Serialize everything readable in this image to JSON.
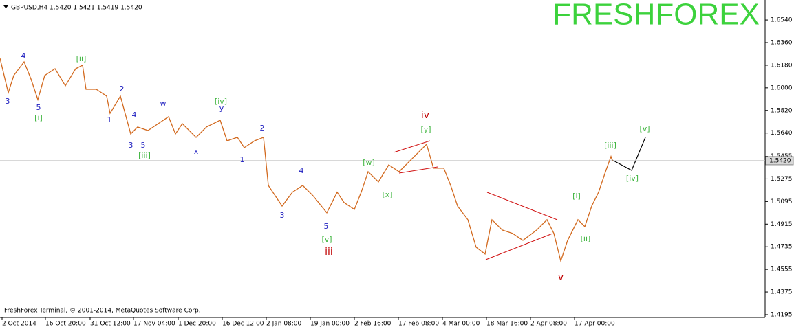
{
  "chart_data": {
    "type": "line",
    "header": "GBPUSD,H4  1.5420 1.5421 1.5419 1.5420",
    "title": "FRESHFOREX",
    "footer": "FreshForex Terminal, © 2001-2014, MetaQuotes Software Corp.",
    "x": [
      0,
      12,
      20,
      35,
      45,
      55,
      65,
      80,
      95,
      110,
      120,
      125,
      140,
      155,
      160,
      175,
      190,
      200,
      215,
      230,
      245,
      255,
      265,
      285,
      300,
      320,
      330,
      345,
      355,
      370,
      383,
      390,
      410,
      425,
      440,
      455,
      475,
      490,
      500,
      515,
      525,
      535,
      550,
      565,
      580,
      600,
      620,
      630,
      645,
      655,
      665,
      680,
      692,
      705,
      715,
      730,
      745,
      760,
      780,
      795,
      805,
      815,
      825,
      840,
      850,
      860,
      870,
      880,
      888,
      890
    ],
    "series": [
      {
        "color": "#d2691e",
        "values": [
          1.6234,
          1.5961,
          1.6098,
          1.6207,
          1.607,
          1.5906,
          1.6098,
          1.6152,
          1.6016,
          1.6152,
          1.618,
          1.5988,
          1.5988,
          1.5934,
          1.5797,
          1.5934,
          1.5633,
          1.5688,
          1.566,
          1.5715,
          1.577,
          1.5633,
          1.5715,
          1.5606,
          1.5688,
          1.5742,
          1.5578,
          1.5606,
          1.5524,
          1.5578,
          1.5606,
          1.5223,
          1.5059,
          1.5169,
          1.5223,
          1.5141,
          1.5005,
          1.5169,
          1.5087,
          1.5032,
          1.5169,
          1.5332,
          1.5251,
          1.5387,
          1.5332,
          1.5442,
          1.5551,
          1.536,
          1.536,
          1.5223,
          1.5059,
          1.495,
          1.4731,
          1.4677,
          1.495,
          1.4868,
          1.4841,
          1.4786,
          1.4868,
          1.495,
          1.4841,
          1.4622,
          1.4786,
          1.495,
          1.4895,
          1.5059,
          1.5169,
          1.5332,
          1.5453,
          1.542
        ]
      }
    ],
    "xlim": [
      0,
      1112
    ],
    "xticks": [
      {
        "value": 3,
        "label": "2 Oct 2014"
      },
      {
        "value": 66,
        "label": "16 Oct 20:00"
      },
      {
        "value": 131,
        "label": "31 Oct 12:00"
      },
      {
        "value": 194,
        "label": "17 Nov 04:00"
      },
      {
        "value": 259,
        "label": "1 Dec 20:00"
      },
      {
        "value": 323,
        "label": "16 Dec 12:00"
      },
      {
        "value": 387,
        "label": "2 Jan 08:00"
      },
      {
        "value": 451,
        "label": "19 Jan 00:00"
      },
      {
        "value": 515,
        "label": "2 Feb 16:00"
      },
      {
        "value": 579,
        "label": "17 Feb 08:00"
      },
      {
        "value": 643,
        "label": "4 Mar 00:00"
      },
      {
        "value": 707,
        "label": "18 Mar 16:00"
      },
      {
        "value": 771,
        "label": "2 Apr 08:00"
      },
      {
        "value": 835,
        "label": "17 Apr 00:00"
      }
    ],
    "ylim": [
      1.4173,
      1.6699
    ],
    "yticks": [
      {
        "value": 1.654,
        "label": "1.6540"
      },
      {
        "value": 1.636,
        "label": "1.6360"
      },
      {
        "value": 1.618,
        "label": "1.6180"
      },
      {
        "value": 1.6,
        "label": "1.6000"
      },
      {
        "value": 1.582,
        "label": "1.5820"
      },
      {
        "value": 1.564,
        "label": "1.5640"
      },
      {
        "value": 1.5455,
        "label": "1.5455"
      },
      {
        "value": 1.5275,
        "label": "1.5275"
      },
      {
        "value": 1.5095,
        "label": "1.5095"
      },
      {
        "value": 1.4915,
        "label": "1.4915"
      },
      {
        "value": 1.4735,
        "label": "1.4735"
      },
      {
        "value": 1.4555,
        "label": "1.4555"
      },
      {
        "value": 1.4375,
        "label": "1.4375"
      },
      {
        "value": 1.4195,
        "label": "1.4195"
      }
    ],
    "current_price": {
      "value": 1.542,
      "label": "1.5420"
    },
    "annotations": [
      {
        "text": "3",
        "color": "#2020c0"
      },
      {
        "text": "4",
        "color": "#2020c0"
      },
      {
        "text": "5",
        "color": "#2020c0"
      },
      {
        "text": "[i]",
        "color": "#3cb43c"
      },
      {
        "text": "[ii]",
        "color": "#3cb43c"
      },
      {
        "text": "2",
        "color": "#2020c0"
      },
      {
        "text": "1",
        "color": "#2020c0"
      },
      {
        "text": "4",
        "color": "#2020c0"
      },
      {
        "text": "3",
        "color": "#2020c0"
      },
      {
        "text": "5",
        "color": "#2020c0"
      },
      {
        "text": "[iii]",
        "color": "#3cb43c"
      },
      {
        "text": "w",
        "color": "#2020c0"
      },
      {
        "text": "x",
        "color": "#2020c0"
      },
      {
        "text": "y",
        "color": "#2020c0"
      },
      {
        "text": "[iv]",
        "color": "#3cb43c"
      },
      {
        "text": "1",
        "color": "#2020c0"
      },
      {
        "text": "2",
        "color": "#2020c0"
      },
      {
        "text": "4",
        "color": "#2020c0"
      },
      {
        "text": "3",
        "color": "#2020c0"
      },
      {
        "text": "5",
        "color": "#2020c0"
      },
      {
        "text": "[v]",
        "color": "#3cb43c"
      },
      {
        "text": "iii",
        "color": "#c00000"
      },
      {
        "text": "[w]",
        "color": "#3cb43c"
      },
      {
        "text": "[x]",
        "color": "#3cb43c"
      },
      {
        "text": "iv",
        "color": "#c00000"
      },
      {
        "text": "[y]",
        "color": "#3cb43c"
      },
      {
        "text": "v",
        "color": "#c00000"
      },
      {
        "text": "[i]",
        "color": "#3cb43c"
      },
      {
        "text": "[ii]",
        "color": "#3cb43c"
      },
      {
        "text": "[iii]",
        "color": "#3cb43c"
      },
      {
        "text": "[iv]",
        "color": "#3cb43c"
      },
      {
        "text": "[v]",
        "color": "#3cb43c"
      }
    ]
  }
}
